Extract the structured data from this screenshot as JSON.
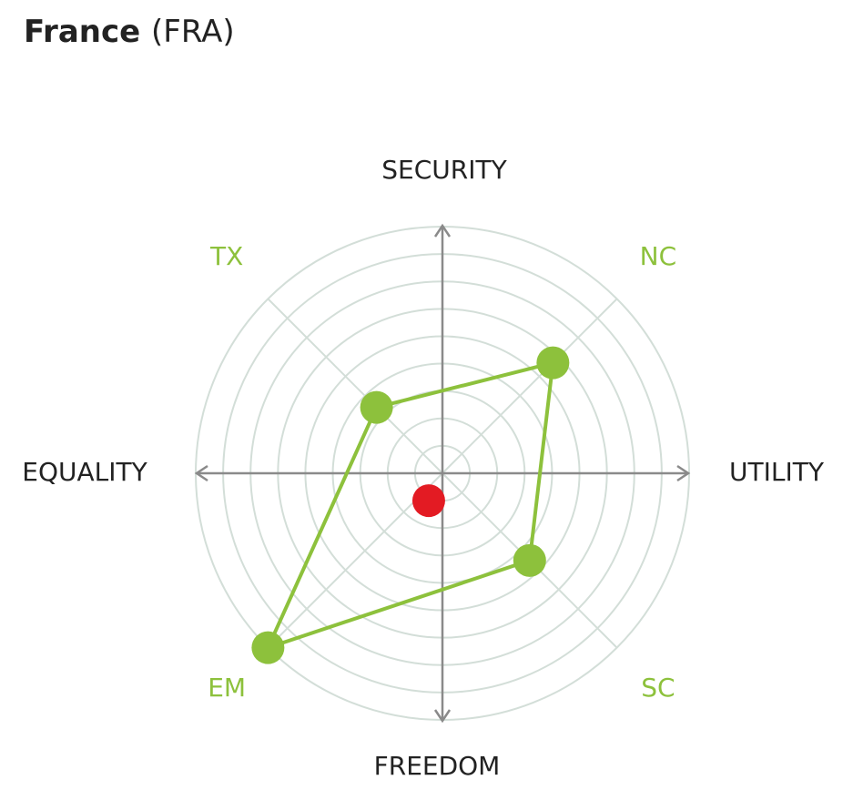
{
  "chart_data": {
    "type": "radar",
    "title": "France",
    "subtitle": "(FRA)",
    "axis_labels": {
      "top": "SECURITY",
      "right": "UTILITY",
      "bottom": "FREEDOM",
      "left": "EQUALITY"
    },
    "categories": [
      "NC",
      "SC",
      "EM",
      "TX"
    ],
    "series": [
      {
        "color": "#8dc13c",
        "values": [
          5.7,
          4.5,
          9.0,
          3.4
        ]
      }
    ],
    "point": {
      "x": -0.5,
      "y": -1.0,
      "color": "#e31b23"
    },
    "rlim": [
      0,
      9
    ],
    "rticks": [
      1,
      2,
      3,
      4,
      5,
      6,
      7,
      8,
      9
    ],
    "grid": true
  }
}
